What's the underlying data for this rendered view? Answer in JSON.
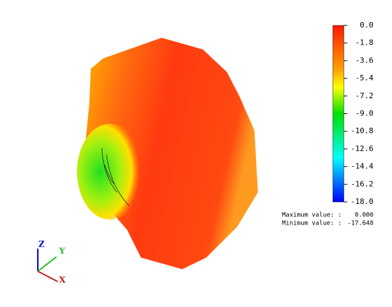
{
  "colorbar": {
    "range": [
      -18,
      0
    ],
    "ticks": [
      {
        "value": 0,
        "label": "0.0"
      },
      -1.8,
      -3.6,
      -5.4,
      -7.2,
      {
        "value": -9,
        "label": "-9.0"
      },
      -10.8,
      -12.6,
      -14.4,
      -16.2,
      {
        "value": -18,
        "label": "-18.0"
      }
    ]
  },
  "stats": {
    "max_label": "Maximum value: :",
    "max_value": "0.000",
    "min_label": "Minimum value: :",
    "min_value": "-17.648"
  },
  "axes": {
    "z": "Z",
    "y": "Y",
    "x": "X"
  }
}
